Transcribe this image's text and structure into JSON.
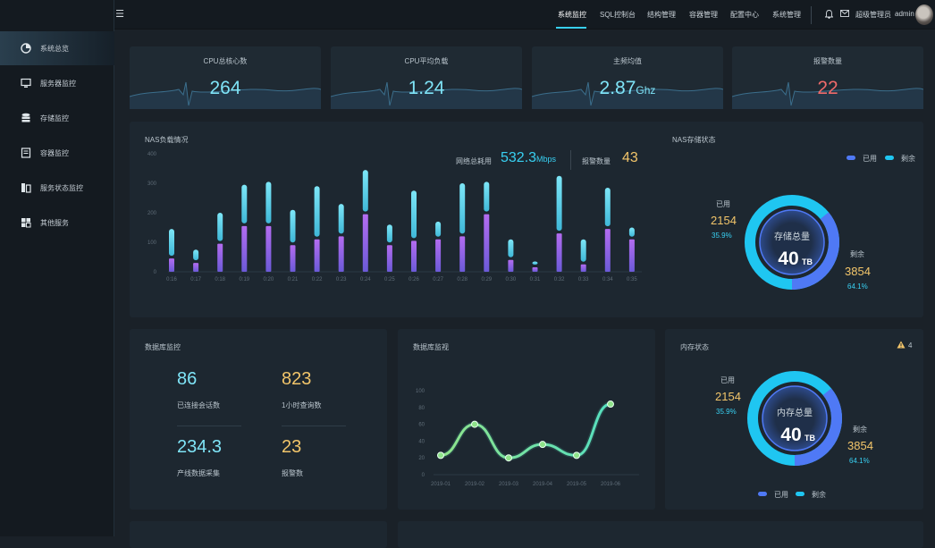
{
  "sidebar": {
    "items": [
      {
        "label": "系统总览",
        "icon": "dashboard-icon"
      },
      {
        "label": "服务器监控",
        "icon": "server-icon"
      },
      {
        "label": "存储监控",
        "icon": "database-icon"
      },
      {
        "label": "容器监控",
        "icon": "container-icon"
      },
      {
        "label": "服务状态监控",
        "icon": "service-icon"
      },
      {
        "label": "其他服务",
        "icon": "grid-icon"
      }
    ]
  },
  "topbar": {
    "nav": [
      "系统监控",
      "SQL控制台",
      "结构管理",
      "容器管理",
      "配置中心",
      "系统管理"
    ],
    "user_role": "超级管理员",
    "user_name": "admin"
  },
  "stats": [
    {
      "label": "CPU总核心数",
      "value": "264",
      "unit": "",
      "color": "#7fe4f7"
    },
    {
      "label": "CPU平均负载",
      "value": "1.24",
      "unit": "",
      "color": "#7fe4f7"
    },
    {
      "label": "主频均值",
      "value": "2.87",
      "unit": "Ghz",
      "color": "#7fe4f7"
    },
    {
      "label": "报警数量",
      "value": "22",
      "unit": "",
      "color": "#ee6a6a"
    }
  ],
  "nas": {
    "title": "NAS负载情况",
    "network_label": "网络总耗用",
    "network_value": "532.3",
    "network_unit": "Mbps",
    "alarm_label": "报警数量",
    "alarm_value": "43"
  },
  "chart_data": [
    {
      "type": "bar",
      "title": "NAS负载情况",
      "categories": [
        "0:16",
        "0:17",
        "0:18",
        "0:19",
        "0:20",
        "0:21",
        "0:22",
        "0:23",
        "0:24",
        "0:25",
        "0:26",
        "0:27",
        "0:28",
        "0:29",
        "0:30",
        "0:31",
        "0:32",
        "0:33",
        "0:34",
        "0:35"
      ],
      "series": [
        {
          "values": [
            45,
            30,
            95,
            155,
            155,
            90,
            110,
            120,
            195,
            90,
            105,
            110,
            120,
            195,
            40,
            15,
            130,
            25,
            145,
            110
          ]
        },
        {
          "values": [
            145,
            75,
            200,
            295,
            305,
            210,
            290,
            230,
            345,
            160,
            275,
            170,
            300,
            305,
            110,
            35,
            325,
            110,
            285,
            150
          ]
        }
      ],
      "ylim": [
        0,
        400
      ],
      "yticks": [
        0,
        100,
        200,
        300,
        400
      ]
    },
    {
      "type": "line",
      "title": "数据库监视",
      "categories": [
        "2019-01",
        "2019-02",
        "2019-03",
        "2019-04",
        "2019-05",
        "2019-06"
      ],
      "values": [
        23,
        60,
        20,
        36,
        23,
        84
      ],
      "ylim": [
        0,
        100
      ],
      "yticks": [
        0,
        20,
        40,
        60,
        80,
        100
      ]
    },
    {
      "type": "pie",
      "title": "NAS存储状态",
      "series": [
        {
          "name": "已用",
          "value": 2154,
          "pct": "35.9%"
        },
        {
          "name": "剩余",
          "value": 3854,
          "pct": "64.1%"
        }
      ]
    },
    {
      "type": "pie",
      "title": "内存状态",
      "series": [
        {
          "name": "已用",
          "value": 2154,
          "pct": "35.9%"
        },
        {
          "name": "剩余",
          "value": 3854,
          "pct": "64.1%"
        }
      ]
    }
  ],
  "storage": {
    "title": "NAS存储状态",
    "center_label": "存储总量",
    "center_value": "40",
    "center_unit": "TB",
    "used_label": "已用",
    "used_value": "2154",
    "used_pct": "35.9%",
    "free_label": "剩余",
    "free_value": "3854",
    "free_pct": "64.1%",
    "legend_used": "已用",
    "legend_free": "剩余"
  },
  "db": {
    "title": "数据库监控",
    "items": [
      {
        "value": "86",
        "label": "已连接会话数"
      },
      {
        "value": "823",
        "label": "1小时查询数"
      },
      {
        "value": "234.3",
        "label": "产线数据采集"
      },
      {
        "value": "23",
        "label": "报警数"
      }
    ]
  },
  "dbchart": {
    "title": "数据库监视"
  },
  "memory": {
    "title": "内存状态",
    "warn_count": "4",
    "center_label": "内存总量",
    "center_value": "40",
    "center_unit": "TB",
    "used_label": "已用",
    "used_value": "2154",
    "used_pct": "35.9%",
    "free_label": "剩余",
    "free_value": "3854",
    "free_pct": "64.1%",
    "legend_used": "已用",
    "legend_free": "剩余"
  },
  "colors": {
    "accent": "#38d0f2",
    "used": "#4f79f5",
    "free": "#1fc6f1",
    "warn": "#f2c56a",
    "alarm": "#ee6a6a"
  }
}
